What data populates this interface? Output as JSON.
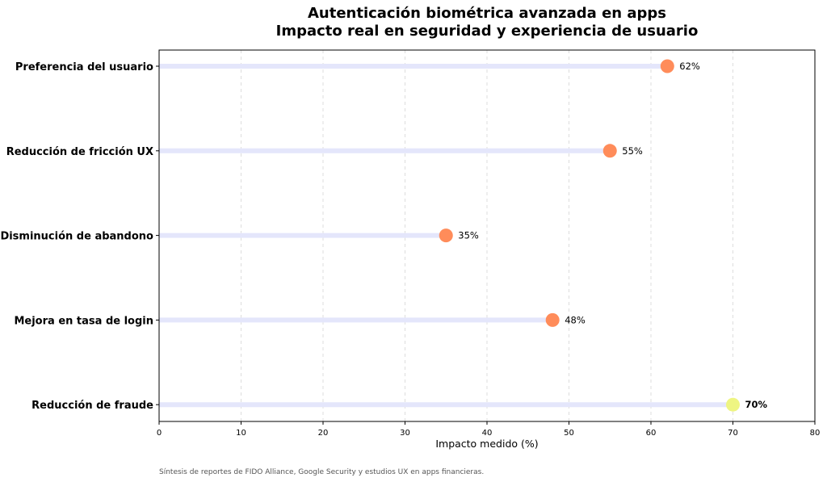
{
  "chart_data": {
    "type": "lollipop",
    "title": "Autenticación biométrica avanzada en apps",
    "subtitle": "Impacto real en seguridad y experiencia de usuario",
    "xlabel": "Impacto medido (%)",
    "ylabel": "",
    "xlim": [
      0,
      80
    ],
    "x_ticks": [
      0,
      10,
      20,
      30,
      40,
      50,
      60,
      70,
      80
    ],
    "grid": "vertical dashed",
    "orientation": "horizontal",
    "categories": [
      "Preferencia del usuario",
      "Reducción de fricción UX",
      "Disminución de abandono",
      "Mejora en tasa de login",
      "Reducción de fraude"
    ],
    "values": [
      62,
      55,
      35,
      48,
      70
    ],
    "value_labels": [
      "62%",
      "55%",
      "35%",
      "48%",
      "70%"
    ],
    "highlight_index": 4,
    "colors": {
      "stem": "#e4e6fb",
      "dot": "#ff8c5a",
      "highlight_dot": "#eef582",
      "grid": "#dddddd",
      "axis": "#000000"
    }
  },
  "source_note": "Síntesis de reportes de FIDO Alliance, Google Security y estudios UX en apps financieras."
}
